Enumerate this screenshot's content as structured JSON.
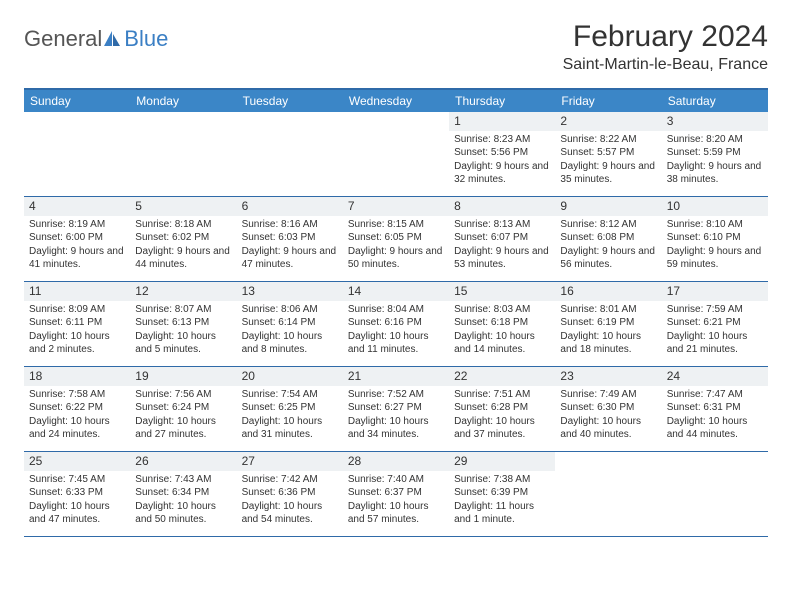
{
  "logo": {
    "general": "General",
    "blue": "Blue"
  },
  "title": "February 2024",
  "location": "Saint-Martin-le-Beau, France",
  "colors": {
    "header_bg": "#3b86c7",
    "border": "#2f6aa8",
    "daynum_bg": "#eef1f3",
    "logo_blue": "#3b7fc4"
  },
  "weekdays": [
    "Sunday",
    "Monday",
    "Tuesday",
    "Wednesday",
    "Thursday",
    "Friday",
    "Saturday"
  ],
  "weeks": [
    [
      {
        "n": "",
        "empty": true
      },
      {
        "n": "",
        "empty": true
      },
      {
        "n": "",
        "empty": true
      },
      {
        "n": "",
        "empty": true
      },
      {
        "n": "1",
        "sunrise": "8:23 AM",
        "sunset": "5:56 PM",
        "daylight": "9 hours and 32 minutes."
      },
      {
        "n": "2",
        "sunrise": "8:22 AM",
        "sunset": "5:57 PM",
        "daylight": "9 hours and 35 minutes."
      },
      {
        "n": "3",
        "sunrise": "8:20 AM",
        "sunset": "5:59 PM",
        "daylight": "9 hours and 38 minutes."
      }
    ],
    [
      {
        "n": "4",
        "sunrise": "8:19 AM",
        "sunset": "6:00 PM",
        "daylight": "9 hours and 41 minutes."
      },
      {
        "n": "5",
        "sunrise": "8:18 AM",
        "sunset": "6:02 PM",
        "daylight": "9 hours and 44 minutes."
      },
      {
        "n": "6",
        "sunrise": "8:16 AM",
        "sunset": "6:03 PM",
        "daylight": "9 hours and 47 minutes."
      },
      {
        "n": "7",
        "sunrise": "8:15 AM",
        "sunset": "6:05 PM",
        "daylight": "9 hours and 50 minutes."
      },
      {
        "n": "8",
        "sunrise": "8:13 AM",
        "sunset": "6:07 PM",
        "daylight": "9 hours and 53 minutes."
      },
      {
        "n": "9",
        "sunrise": "8:12 AM",
        "sunset": "6:08 PM",
        "daylight": "9 hours and 56 minutes."
      },
      {
        "n": "10",
        "sunrise": "8:10 AM",
        "sunset": "6:10 PM",
        "daylight": "9 hours and 59 minutes."
      }
    ],
    [
      {
        "n": "11",
        "sunrise": "8:09 AM",
        "sunset": "6:11 PM",
        "daylight": "10 hours and 2 minutes."
      },
      {
        "n": "12",
        "sunrise": "8:07 AM",
        "sunset": "6:13 PM",
        "daylight": "10 hours and 5 minutes."
      },
      {
        "n": "13",
        "sunrise": "8:06 AM",
        "sunset": "6:14 PM",
        "daylight": "10 hours and 8 minutes."
      },
      {
        "n": "14",
        "sunrise": "8:04 AM",
        "sunset": "6:16 PM",
        "daylight": "10 hours and 11 minutes."
      },
      {
        "n": "15",
        "sunrise": "8:03 AM",
        "sunset": "6:18 PM",
        "daylight": "10 hours and 14 minutes."
      },
      {
        "n": "16",
        "sunrise": "8:01 AM",
        "sunset": "6:19 PM",
        "daylight": "10 hours and 18 minutes."
      },
      {
        "n": "17",
        "sunrise": "7:59 AM",
        "sunset": "6:21 PM",
        "daylight": "10 hours and 21 minutes."
      }
    ],
    [
      {
        "n": "18",
        "sunrise": "7:58 AM",
        "sunset": "6:22 PM",
        "daylight": "10 hours and 24 minutes."
      },
      {
        "n": "19",
        "sunrise": "7:56 AM",
        "sunset": "6:24 PM",
        "daylight": "10 hours and 27 minutes."
      },
      {
        "n": "20",
        "sunrise": "7:54 AM",
        "sunset": "6:25 PM",
        "daylight": "10 hours and 31 minutes."
      },
      {
        "n": "21",
        "sunrise": "7:52 AM",
        "sunset": "6:27 PM",
        "daylight": "10 hours and 34 minutes."
      },
      {
        "n": "22",
        "sunrise": "7:51 AM",
        "sunset": "6:28 PM",
        "daylight": "10 hours and 37 minutes."
      },
      {
        "n": "23",
        "sunrise": "7:49 AM",
        "sunset": "6:30 PM",
        "daylight": "10 hours and 40 minutes."
      },
      {
        "n": "24",
        "sunrise": "7:47 AM",
        "sunset": "6:31 PM",
        "daylight": "10 hours and 44 minutes."
      }
    ],
    [
      {
        "n": "25",
        "sunrise": "7:45 AM",
        "sunset": "6:33 PM",
        "daylight": "10 hours and 47 minutes."
      },
      {
        "n": "26",
        "sunrise": "7:43 AM",
        "sunset": "6:34 PM",
        "daylight": "10 hours and 50 minutes."
      },
      {
        "n": "27",
        "sunrise": "7:42 AM",
        "sunset": "6:36 PM",
        "daylight": "10 hours and 54 minutes."
      },
      {
        "n": "28",
        "sunrise": "7:40 AM",
        "sunset": "6:37 PM",
        "daylight": "10 hours and 57 minutes."
      },
      {
        "n": "29",
        "sunrise": "7:38 AM",
        "sunset": "6:39 PM",
        "daylight": "11 hours and 1 minute."
      },
      {
        "n": "",
        "empty": true
      },
      {
        "n": "",
        "empty": true
      }
    ]
  ],
  "labels": {
    "sunrise": "Sunrise: ",
    "sunset": "Sunset: ",
    "daylight": "Daylight: "
  }
}
